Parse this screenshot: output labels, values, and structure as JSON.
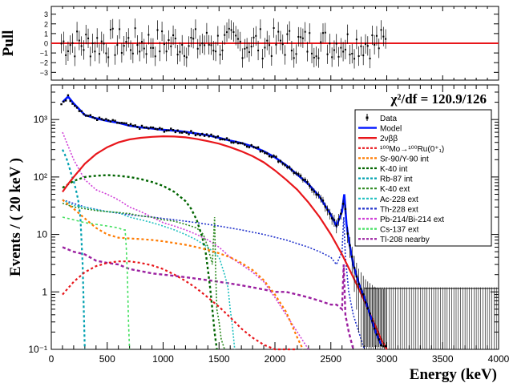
{
  "chart_data": [
    {
      "type": "scatter",
      "panel": "pull",
      "ylabel": "Pull",
      "y_ticks": [
        "3",
        "2",
        "1",
        "0",
        "−1",
        "−2",
        "−3"
      ],
      "ylim": [
        -3.8,
        3.8
      ],
      "xlim": [
        0,
        4000
      ],
      "zero_line": 0,
      "colors": {
        "zero_line": "#e8161b",
        "points": "#000000"
      }
    },
    {
      "type": "line",
      "panel": "main",
      "ylabel": "Events / ( 20 keV )",
      "xlabel": "Energy (keV)",
      "annotation": "χ²/df = 120.9/126",
      "y_scale": "log",
      "ylim": [
        0.1,
        4000
      ],
      "xlim": [
        0,
        4000
      ],
      "x_ticks": [
        "0",
        "500",
        "1000",
        "1500",
        "2000",
        "2500",
        "3000",
        "3500",
        "4000"
      ],
      "y_ticks": [
        "10⁻¹",
        "1",
        "10",
        "10²",
        "10³"
      ],
      "legend_position": "right",
      "legend": [
        {
          "label": "Data",
          "color": "#000000",
          "style": "marker"
        },
        {
          "label": "Model",
          "color": "#0015ff",
          "style": "solid"
        },
        {
          "label": "2νββ",
          "color": "#e8161b",
          "style": "solid"
        },
        {
          "label": "¹⁰⁰Mo→¹⁰⁰Ru(0⁺₁)",
          "color": "#e8161b",
          "style": "dotted"
        },
        {
          "label": "Sr-90/Y-90 int",
          "color": "#ff7a00",
          "style": "dotted"
        },
        {
          "label": "K-40 int",
          "color": "#006400",
          "style": "dotted"
        },
        {
          "label": "Rb-87 int",
          "color": "#00a0b0",
          "style": "dotted"
        },
        {
          "label": "K-40 ext",
          "color": "#2e8b22",
          "style": "dotted"
        },
        {
          "label": "Ac-228 ext",
          "color": "#20c0c0",
          "style": "dotted"
        },
        {
          "label": "Th-228 ext",
          "color": "#2233cc",
          "style": "dotted"
        },
        {
          "label": "Pb-214/Bi-214 ext",
          "color": "#d040d8",
          "style": "dotted"
        },
        {
          "label": "Cs-137 ext",
          "color": "#44e060",
          "style": "dotted"
        },
        {
          "label": "Tl-208 nearby",
          "color": "#9b1fa0",
          "style": "dotted"
        }
      ],
      "series": [
        {
          "name": "Model",
          "color": "#0015ff",
          "width": 2.6,
          "dash": "",
          "x": [
            100,
            150,
            200,
            300,
            400,
            500,
            600,
            700,
            800,
            900,
            1000,
            1100,
            1200,
            1300,
            1400,
            1500,
            1600,
            1700,
            1800,
            1900,
            2000,
            2100,
            2200,
            2300,
            2400,
            2500,
            2550,
            2600,
            2620,
            2640,
            2660,
            2700,
            2750,
            2800,
            2850,
            2900,
            2950
          ],
          "y": [
            2000,
            2500,
            1900,
            1200,
            1050,
            950,
            880,
            780,
            730,
            700,
            660,
            640,
            610,
            570,
            530,
            480,
            430,
            390,
            340,
            280,
            220,
            160,
            110,
            75,
            45,
            22,
            14,
            25,
            50,
            15,
            8,
            3,
            1.4,
            0.8,
            0.4,
            0.2,
            0.12
          ]
        },
        {
          "name": "2νββ",
          "color": "#e8161b",
          "width": 2.2,
          "dash": "",
          "x": [
            100,
            150,
            200,
            300,
            400,
            500,
            600,
            700,
            800,
            900,
            1000,
            1100,
            1200,
            1300,
            1400,
            1500,
            1600,
            1700,
            1800,
            1900,
            2000,
            2100,
            2200,
            2300,
            2400,
            2500,
            2600,
            2700,
            2800,
            2900,
            2950,
            3000
          ],
          "y": [
            55,
            75,
            100,
            170,
            250,
            330,
            400,
            450,
            480,
            500,
            510,
            505,
            490,
            460,
            420,
            380,
            330,
            280,
            230,
            180,
            130,
            90,
            60,
            36,
            20,
            10,
            4.5,
            1.8,
            0.7,
            0.25,
            0.15,
            0.1
          ]
        },
        {
          "name": "¹⁰⁰Mo→¹⁰⁰Ru(0⁺₁)",
          "color": "#e8161b",
          "width": 2.2,
          "dash": "3,3",
          "x": [
            100,
            200,
            300,
            400,
            500,
            600,
            700,
            800,
            900,
            1000,
            1100,
            1200,
            1300,
            1400,
            1500,
            1600,
            1700,
            1800,
            1900,
            2000,
            2100,
            2200
          ],
          "y": [
            0.9,
            1.5,
            2.2,
            2.8,
            3.2,
            3.4,
            3.4,
            3.2,
            2.9,
            2.5,
            2.0,
            1.55,
            1.15,
            0.8,
            0.55,
            0.36,
            0.23,
            0.16,
            0.12,
            0.1,
            0.1,
            0.1
          ]
        },
        {
          "name": "Sr-90/Y-90 int",
          "color": "#ff7a00",
          "width": 2.2,
          "dash": "3,3",
          "x": [
            100,
            200,
            300,
            400,
            500,
            600,
            700,
            800,
            900,
            1000,
            1100,
            1200,
            1300,
            1400,
            1500,
            1600,
            1700,
            1800,
            1900,
            2000,
            2100,
            2200,
            2250
          ],
          "y": [
            40,
            28,
            19,
            13,
            10,
            8.8,
            8.5,
            8.3,
            8.0,
            7.6,
            7.1,
            6.6,
            6.0,
            5.4,
            4.7,
            4.0,
            3.2,
            2.4,
            1.6,
            0.9,
            0.45,
            0.16,
            0.1
          ]
        },
        {
          "name": "K-40 int",
          "color": "#006400",
          "width": 2.4,
          "dash": "3,3",
          "x": [
            100,
            200,
            300,
            400,
            500,
            600,
            700,
            800,
            900,
            1000,
            1100,
            1200,
            1250,
            1300,
            1350,
            1380,
            1400,
            1420,
            1440,
            1460,
            1480
          ],
          "y": [
            65,
            85,
            100,
            105,
            108,
            105,
            100,
            92,
            82,
            70,
            55,
            38,
            28,
            18,
            9,
            5,
            2.5,
            1.2,
            0.5,
            0.2,
            0.1
          ]
        },
        {
          "name": "Rb-87 int",
          "color": "#00a0b0",
          "width": 2.2,
          "dash": "3,3",
          "x": [
            100,
            120,
            140,
            160,
            180,
            200,
            220,
            240,
            260,
            280,
            290,
            300
          ],
          "y": [
            300,
            250,
            200,
            150,
            110,
            85,
            60,
            40,
            20,
            3,
            0.5,
            0.1
          ]
        },
        {
          "name": "K-40 ext",
          "color": "#2e8b22",
          "width": 1.6,
          "dash": "2,2",
          "x": [
            100,
            200,
            300,
            400,
            500,
            600,
            700,
            800,
            900,
            1000,
            1100,
            1200,
            1300,
            1360,
            1400,
            1440,
            1460,
            1470,
            1480,
            1500,
            1520,
            1550
          ],
          "y": [
            35,
            30,
            28,
            26,
            25,
            24,
            23,
            21,
            20,
            18,
            17,
            15,
            13,
            10,
            6,
            3,
            20,
            2,
            0.5,
            0.3,
            0.15,
            0.1
          ]
        },
        {
          "name": "Ac-228 ext",
          "color": "#20c0c0",
          "width": 1.6,
          "dash": "2,2",
          "x": [
            100,
            200,
            300,
            400,
            500,
            600,
            700,
            800,
            900,
            1000,
            1100,
            1200,
            1300,
            1400,
            1500,
            1550,
            1580,
            1600,
            1620,
            1640
          ],
          "y": [
            40,
            32,
            30,
            27,
            25,
            24,
            20,
            18,
            16,
            14,
            12,
            10,
            8,
            6,
            4,
            2,
            1.2,
            0.5,
            0.25,
            0.1
          ]
        },
        {
          "name": "Th-228 ext",
          "color": "#2233cc",
          "width": 1.6,
          "dash": "2,2",
          "x": [
            100,
            300,
            500,
            700,
            900,
            1100,
            1300,
            1500,
            1700,
            1900,
            2100,
            2300,
            2400,
            2500,
            2550,
            2600,
            2615,
            2630,
            2660,
            2700,
            2750,
            2800
          ],
          "y": [
            40,
            30,
            25,
            22,
            20,
            18,
            16,
            14,
            12,
            10,
            8,
            6,
            5,
            4,
            3,
            5,
            20,
            4,
            1,
            0.4,
            0.2,
            0.1
          ]
        },
        {
          "name": "Pb-214/Bi-214 ext",
          "color": "#d040d8",
          "width": 1.6,
          "dash": "2,2",
          "x": [
            100,
            200,
            300,
            400,
            500,
            600,
            700,
            800,
            900,
            1000,
            1100,
            1200,
            1300,
            1400,
            1500,
            1600,
            1700,
            1800,
            1900,
            2000,
            2100,
            2200,
            2300
          ],
          "y": [
            600,
            200,
            90,
            60,
            50,
            40,
            30,
            25,
            20,
            16,
            14,
            12,
            10,
            8,
            6,
            4,
            3,
            2.2,
            1.5,
            0.8,
            0.4,
            0.2,
            0.1
          ]
        },
        {
          "name": "Cs-137 ext",
          "color": "#44e060",
          "width": 1.6,
          "dash": "3,3",
          "x": [
            100,
            200,
            300,
            400,
            500,
            600,
            640,
            660,
            670,
            680,
            690,
            700
          ],
          "y": [
            20,
            18,
            16,
            15,
            14,
            13,
            12,
            12,
            6,
            2,
            0.3,
            0.1
          ]
        },
        {
          "name": "Tl-208 nearby",
          "color": "#9b1fa0",
          "width": 2.4,
          "dash": "4,3",
          "x": [
            100,
            200,
            300,
            400,
            500,
            600,
            700,
            800,
            900,
            1000,
            1100,
            1200,
            1300,
            1400,
            1500,
            1600,
            1700,
            1800,
            1900,
            2000,
            2100,
            2200,
            2300,
            2400,
            2500,
            2550,
            2600,
            2615,
            2630,
            2660,
            2700
          ],
          "y": [
            6,
            5,
            4.5,
            3.5,
            3.2,
            3,
            2.5,
            2.3,
            2.1,
            2.0,
            1.9,
            1.8,
            1.7,
            1.6,
            1.5,
            1.4,
            1.3,
            1.2,
            1.1,
            1.0,
            1.0,
            0.9,
            0.8,
            0.7,
            0.6,
            0.6,
            0.5,
            3,
            0.4,
            0.2,
            0.1
          ]
        }
      ]
    }
  ]
}
